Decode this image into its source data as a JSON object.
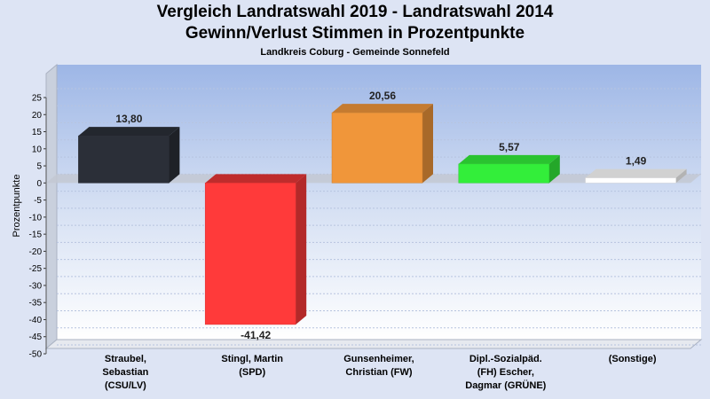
{
  "chart_data": {
    "type": "bar",
    "title": "Vergleich Landratswahl 2019 - Landratswahl 2014",
    "subtitle": "Gewinn/Verlust Stimmen in Prozentpunkte",
    "subsubtitle": "Landkreis Coburg - Gemeinde Sonnefeld",
    "ylabel": "Prozentpunkte",
    "ylim": [
      -50,
      25
    ],
    "yticks": [
      "25",
      "20",
      "15",
      "10",
      "5",
      "0",
      "-5",
      "-10",
      "-15",
      "-20",
      "-25",
      "-30",
      "-35",
      "-40",
      "-45",
      "-50"
    ],
    "categories": [
      [
        "Straubel,",
        "Sebastian",
        "(CSU/LV)"
      ],
      [
        "Stingl, Martin",
        "(SPD)"
      ],
      [
        "Gunsenheimer,",
        "Christian (FW)"
      ],
      [
        "Dipl.-Sozialpäd.",
        "(FH) Escher,",
        "Dagmar (GRÜNE)"
      ],
      [
        "(Sonstige)"
      ]
    ],
    "values": [
      13.8,
      -41.42,
      20.56,
      5.57,
      1.49
    ],
    "value_labels": [
      "13,80",
      "-41,42",
      "20,56",
      "5,57",
      "1,49"
    ],
    "colors": [
      "#2b2f38",
      "#ff3a3a",
      "#f0963a",
      "#33ee3a",
      "#ffffff"
    ],
    "grid": true
  }
}
